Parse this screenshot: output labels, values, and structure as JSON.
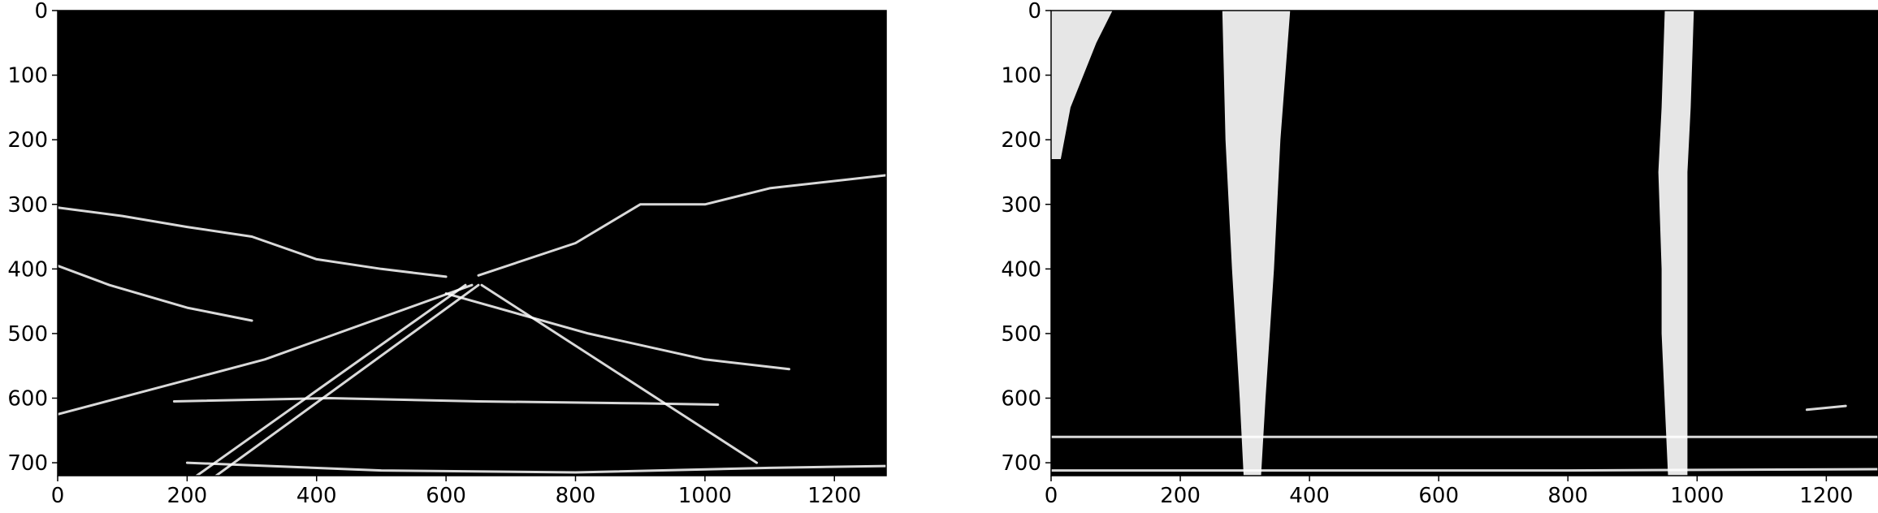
{
  "figure": {
    "background": "#ffffff",
    "panel_background": "#000000",
    "edge_color": "#ffffff"
  },
  "chart_data": [
    {
      "type": "heatmap",
      "title": "",
      "xlabel": "",
      "ylabel": "",
      "xlim": [
        0,
        1280
      ],
      "ylim": [
        720,
        0
      ],
      "x_ticks": [
        0,
        200,
        400,
        600,
        800,
        1000,
        1200
      ],
      "y_ticks": [
        0,
        100,
        200,
        300,
        400,
        500,
        600,
        700
      ],
      "colormap": "gray",
      "value_range": [
        0,
        1
      ],
      "series": [
        {
          "kind": "polyline",
          "points": [
            [
              0,
              625
            ],
            [
              320,
              540
            ],
            [
              640,
              425
            ]
          ]
        },
        {
          "kind": "polyline",
          "points": [
            [
              215,
              720
            ],
            [
              630,
              425
            ]
          ]
        },
        {
          "kind": "polyline",
          "points": [
            [
              245,
              720
            ],
            [
              650,
              425
            ]
          ]
        },
        {
          "kind": "polyline",
          "points": [
            [
              655,
              425
            ],
            [
              1080,
              700
            ]
          ]
        },
        {
          "kind": "polyline",
          "points": [
            [
              0,
              395
            ],
            [
              80,
              425
            ],
            [
              200,
              460
            ],
            [
              300,
              480
            ]
          ]
        },
        {
          "kind": "polyline",
          "points": [
            [
              600,
              438
            ],
            [
              820,
              500
            ],
            [
              1000,
              540
            ],
            [
              1130,
              555
            ]
          ]
        },
        {
          "kind": "polyline",
          "points": [
            [
              0,
              305
            ],
            [
              100,
              318
            ],
            [
              200,
              335
            ],
            [
              300,
              350
            ],
            [
              400,
              385
            ],
            [
              500,
              400
            ],
            [
              600,
              412
            ]
          ]
        },
        {
          "kind": "polyline",
          "points": [
            [
              650,
              410
            ],
            [
              800,
              360
            ],
            [
              900,
              300
            ],
            [
              1000,
              300
            ],
            [
              1100,
              275
            ],
            [
              1280,
              255
            ]
          ]
        },
        {
          "kind": "polyline",
          "points": [
            [
              180,
              605
            ],
            [
              420,
              600
            ],
            [
              650,
              605
            ],
            [
              900,
              608
            ],
            [
              1020,
              610
            ]
          ]
        },
        {
          "kind": "polyline",
          "points": [
            [
              200,
              700
            ],
            [
              500,
              712
            ],
            [
              800,
              715
            ],
            [
              1100,
              708
            ],
            [
              1280,
              705
            ]
          ]
        }
      ]
    },
    {
      "type": "heatmap",
      "title": "",
      "xlabel": "",
      "ylabel": "",
      "xlim": [
        0,
        1280
      ],
      "ylim": [
        720,
        0
      ],
      "x_ticks": [
        0,
        200,
        400,
        600,
        800,
        1000,
        1200
      ],
      "y_ticks": [
        0,
        100,
        200,
        300,
        400,
        500,
        600,
        700
      ],
      "colormap": "gray",
      "value_range": [
        0,
        1
      ],
      "series": [
        {
          "kind": "band",
          "left": [
            [
              0,
              265
            ],
            [
              200,
              270
            ],
            [
              400,
              280
            ],
            [
              600,
              292
            ],
            [
              720,
              298
            ]
          ],
          "right": [
            [
              0,
              370
            ],
            [
              200,
              355
            ],
            [
              400,
              345
            ],
            [
              600,
              332
            ],
            [
              720,
              325
            ]
          ]
        },
        {
          "kind": "band",
          "left": [
            [
              0,
              950
            ],
            [
              150,
              945
            ],
            [
              250,
              940
            ],
            [
              400,
              945
            ],
            [
              500,
              945
            ],
            [
              720,
              955
            ]
          ],
          "right": [
            [
              0,
              995
            ],
            [
              150,
              990
            ],
            [
              250,
              985
            ],
            [
              400,
              985
            ],
            [
              500,
              985
            ],
            [
              720,
              985
            ]
          ]
        },
        {
          "kind": "band",
          "left": [
            [
              0,
              0
            ],
            [
              50,
              0
            ],
            [
              150,
              0
            ],
            [
              230,
              0
            ]
          ],
          "right": [
            [
              0,
              95
            ],
            [
              50,
              70
            ],
            [
              150,
              30
            ],
            [
              230,
              15
            ]
          ]
        },
        {
          "kind": "polyline",
          "points": [
            [
              0,
              660
            ],
            [
              400,
              660
            ],
            [
              800,
              660
            ],
            [
              1280,
              660
            ]
          ]
        },
        {
          "kind": "polyline",
          "points": [
            [
              0,
              712
            ],
            [
              400,
              712
            ],
            [
              800,
              712
            ],
            [
              1280,
              710
            ]
          ]
        },
        {
          "kind": "polyline",
          "points": [
            [
              1170,
              618
            ],
            [
              1230,
              612
            ]
          ]
        }
      ]
    }
  ]
}
